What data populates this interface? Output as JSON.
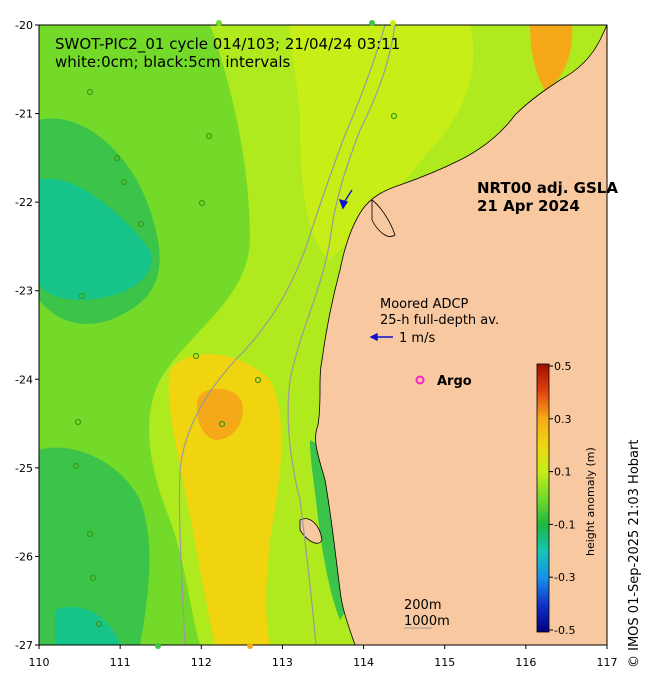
{
  "title_line1": "SWOT-PIC2_01 cycle 014/103; 21/04/24 03:11",
  "title_line2": "white:0cm; black:5cm intervals",
  "product_line1": "NRT00 adj. GSLA",
  "product_line2": "21 Apr 2024",
  "adcp_label_line1": "Moored ADCP",
  "adcp_label_line2": "25-h full-depth av.",
  "adcp_scale_label": "1 m/s",
  "argo_label": "Argo",
  "depth_label_1": "200m",
  "depth_label_2": "1000m",
  "credit": "© IMOS 01-Sep-2025 21:03 Hobart",
  "colorbar": {
    "label": "height anomaly (m)",
    "ticks": [
      "0.5",
      "0.3",
      "0.1",
      "-0.1",
      "-0.3",
      "-0.5"
    ]
  },
  "axes": {
    "x_ticks": [
      "110",
      "111",
      "112",
      "113",
      "114",
      "115",
      "116",
      "117"
    ],
    "y_ticks": [
      "-20",
      "-21",
      "-22",
      "-23",
      "-24",
      "-25",
      "-26",
      "-27"
    ]
  },
  "colors": {
    "land": "#f8c8a0",
    "high": "#f5a818",
    "mid_high": "#f0d410",
    "mid": "#c8ee18",
    "neutral": "#aeea1e",
    "low": "#74da2a",
    "lower": "#3cc44a",
    "lowest": "#16c48a",
    "argo": "#ff22cc",
    "adcp_arrow": "#1010cc"
  }
}
